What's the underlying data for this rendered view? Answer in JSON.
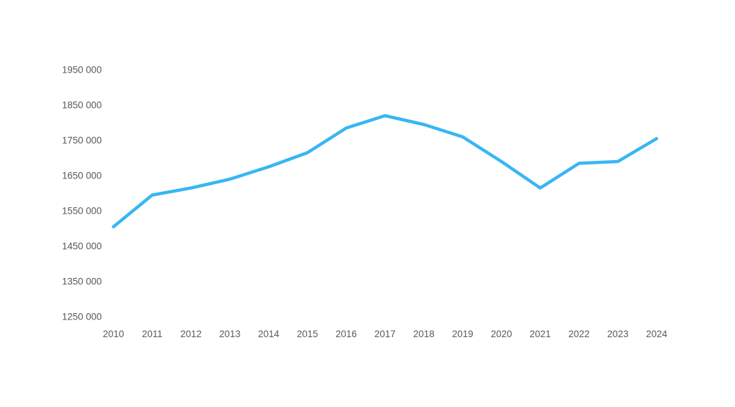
{
  "chart_data": {
    "type": "line",
    "title": "",
    "xlabel": "",
    "ylabel": "",
    "categories": [
      "2010",
      "2011",
      "2012",
      "2013",
      "2014",
      "2015",
      "2016",
      "2017",
      "2018",
      "2019",
      "2020",
      "2021",
      "2022",
      "2023",
      "2024"
    ],
    "values": [
      1505000,
      1595000,
      1615000,
      1640000,
      1675000,
      1715000,
      1785000,
      1820000,
      1795000,
      1760000,
      1690000,
      1615000,
      1685000,
      1690000,
      1755000
    ],
    "series_name": "",
    "y_tick_labels": [
      "1950 000",
      "1850 000",
      "1750 000",
      "1650 000",
      "1550 000",
      "1450 000",
      "1350 000",
      "1250 000"
    ],
    "y_tick_values": [
      1950000,
      1850000,
      1750000,
      1650000,
      1550000,
      1450000,
      1350000,
      1250000
    ],
    "ylim": [
      1250000,
      1950000
    ],
    "grid": false,
    "legend": false,
    "line_color": "#38b6f3",
    "label_color": "#595959",
    "background_color": "#ffffff"
  }
}
